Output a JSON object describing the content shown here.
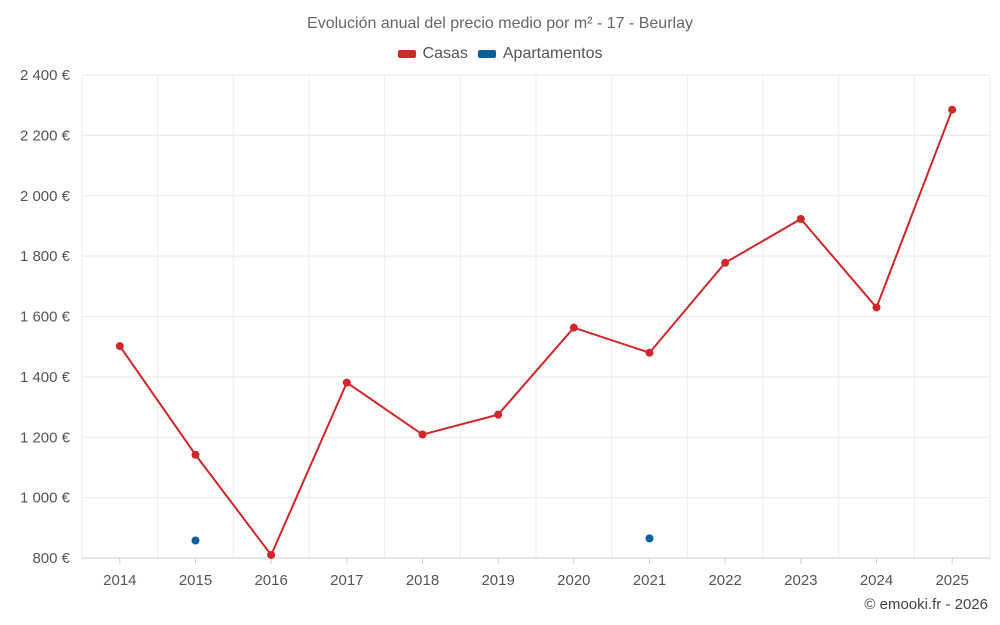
{
  "chart_data": {
    "type": "line",
    "title": "Evolución anual del precio medio por m² - 17 - Beurlay",
    "categories": [
      "2014",
      "2015",
      "2016",
      "2017",
      "2018",
      "2019",
      "2020",
      "2021",
      "2022",
      "2023",
      "2024",
      "2025"
    ],
    "series": [
      {
        "name": "Casas",
        "color": "#d0272a",
        "values": [
          1502,
          1142,
          810,
          1381,
          1209,
          1275,
          1563,
          1480,
          1778,
          1923,
          1630,
          2285
        ]
      },
      {
        "name": "Apartamentos",
        "color": "#0b5f9a",
        "values": [
          null,
          858,
          null,
          null,
          null,
          null,
          null,
          865,
          null,
          null,
          null,
          null
        ]
      }
    ],
    "ylim": [
      800,
      2400
    ],
    "yticks": [
      800,
      1000,
      1200,
      1400,
      1600,
      1800,
      2000,
      2200,
      2400
    ],
    "ytick_labels": [
      "800 €",
      "1 000 €",
      "1 200 €",
      "1 400 €",
      "1 600 €",
      "1 800 €",
      "2 000 €",
      "2 200 €",
      "2 400 €"
    ],
    "xlabel": "",
    "ylabel": "",
    "grid": true,
    "legend_position": "top-center"
  },
  "legend": {
    "casas": "Casas",
    "apartamentos": "Apartamentos"
  },
  "credit": "© emooki.fr - 2026"
}
